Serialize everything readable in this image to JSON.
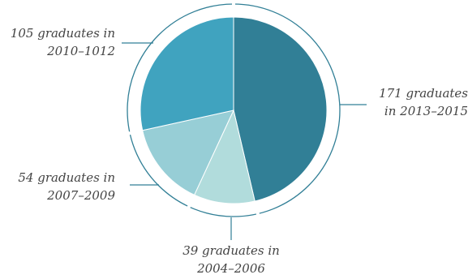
{
  "chart_data": {
    "type": "pie",
    "slices": [
      {
        "value": 171,
        "line1": "171 graduates",
        "line2": "in 2013–2015",
        "color": "#317f96"
      },
      {
        "value": 39,
        "line1": "39 graduates in",
        "line2": "2004–2006",
        "color": "#b1dcdc"
      },
      {
        "value": 54,
        "line1": "54 graduates in",
        "line2": "2007–2009",
        "color": "#97ced6"
      },
      {
        "value": 105,
        "line1": "105 graduates in",
        "line2": "2010–1012",
        "color": "#40a3bf"
      }
    ],
    "start_angle_deg": 0,
    "direction": "clockwise",
    "legend": "none",
    "ring_color": "#317f96"
  }
}
